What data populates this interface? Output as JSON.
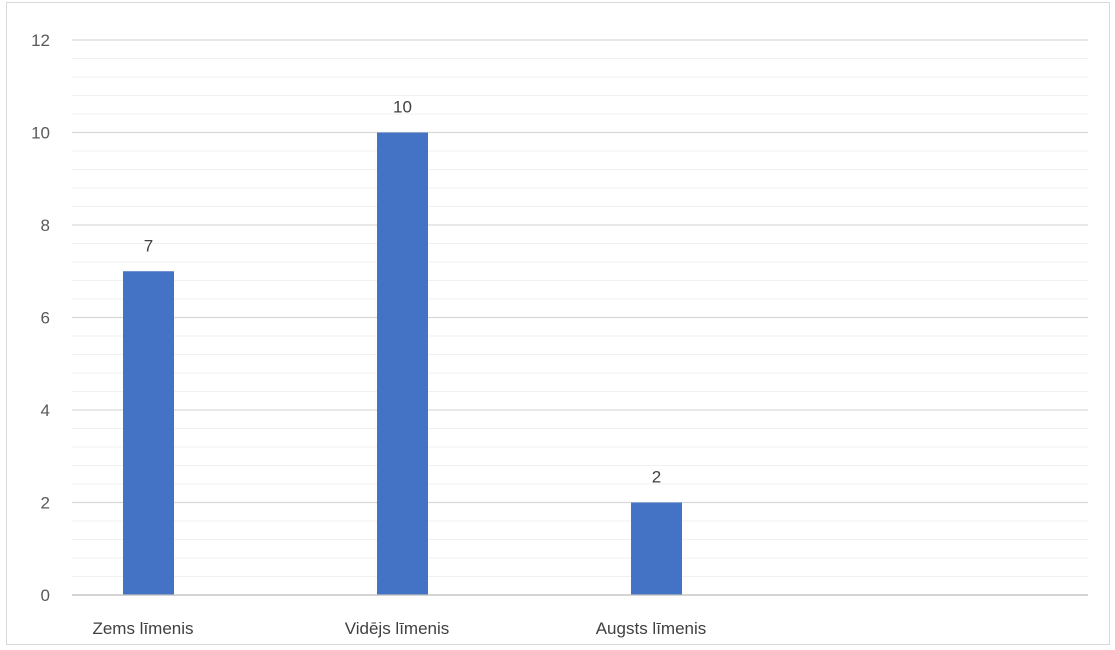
{
  "chart_data": {
    "type": "bar",
    "title": "",
    "xlabel": "",
    "ylabel": "",
    "categories": [
      "Zems līmenis",
      "Vidējs līmenis",
      "Augsts līmenis",
      ""
    ],
    "values": [
      7,
      10,
      2,
      null
    ],
    "data_labels": [
      "7",
      "10",
      "2",
      ""
    ],
    "ylim": [
      0,
      12
    ],
    "major_ticks": [
      0,
      2,
      4,
      6,
      8,
      10,
      12
    ],
    "minor_step": 0.4,
    "grid": "major and minor horizontal",
    "legend": "none",
    "colors": {
      "bar": "#4472C4",
      "major_grid": "#d9d9d9",
      "minor_grid": "#f0f0f0",
      "axis": "#bfbfbf"
    }
  }
}
